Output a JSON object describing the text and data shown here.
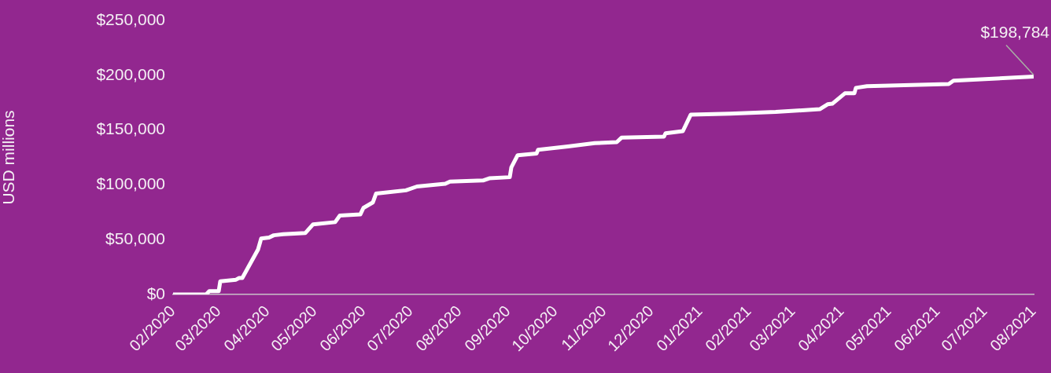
{
  "chart_data": {
    "type": "line",
    "ylabel": "USD millions",
    "x": [
      "2020-02-01",
      "2020-02-22",
      "2020-02-24",
      "2020-03-01",
      "2020-03-02",
      "2020-03-12",
      "2020-03-14",
      "2020-03-16",
      "2020-03-26",
      "2020-03-28",
      "2020-04-02",
      "2020-04-05",
      "2020-04-11",
      "2020-04-25",
      "2020-04-30",
      "2020-05-14",
      "2020-05-17",
      "2020-05-30",
      "2020-06-01",
      "2020-06-07",
      "2020-06-09",
      "2020-06-28",
      "2020-07-05",
      "2020-07-23",
      "2020-07-26",
      "2020-08-16",
      "2020-08-20",
      "2020-09-02",
      "2020-09-03",
      "2020-09-07",
      "2020-09-19",
      "2020-09-20",
      "2020-10-09",
      "2020-10-26",
      "2020-11-09",
      "2020-11-12",
      "2020-12-09",
      "2020-12-10",
      "2020-12-21",
      "2020-12-26",
      "2021-01-20",
      "2021-02-18",
      "2021-03-18",
      "2021-03-23",
      "2021-03-26",
      "2021-04-03",
      "2021-04-09",
      "2021-04-10",
      "2021-04-17",
      "2021-06-08",
      "2021-06-11",
      "2021-08-01"
    ],
    "series": [
      {
        "color": "#ffffff",
        "values": [
          0,
          0,
          3000,
          3000,
          12000,
          13500,
          15000,
          15000,
          41000,
          51000,
          52000,
          54000,
          55000,
          56000,
          64000,
          66000,
          72000,
          73000,
          79000,
          84000,
          92000,
          95000,
          98500,
          101000,
          103000,
          104000,
          106000,
          107000,
          116000,
          127000,
          128500,
          132000,
          135000,
          138000,
          139000,
          143000,
          144000,
          147000,
          149000,
          164000,
          165000,
          166500,
          169000,
          173500,
          174000,
          183500,
          183500,
          188500,
          190000,
          192000,
          195000,
          198784
        ]
      }
    ],
    "xlim": [
      "2020-02-01",
      "2021-08-01"
    ],
    "xticks": [
      {
        "value": "2020-02-01",
        "label": "02/2020"
      },
      {
        "value": "2020-03-01",
        "label": "03/2020"
      },
      {
        "value": "2020-04-01",
        "label": "04/2020"
      },
      {
        "value": "2020-05-01",
        "label": "05/2020"
      },
      {
        "value": "2020-06-01",
        "label": "06/2020"
      },
      {
        "value": "2020-07-01",
        "label": "07/2020"
      },
      {
        "value": "2020-08-01",
        "label": "08/2020"
      },
      {
        "value": "2020-09-01",
        "label": "09/2020"
      },
      {
        "value": "2020-10-01",
        "label": "10/2020"
      },
      {
        "value": "2020-11-01",
        "label": "11/2020"
      },
      {
        "value": "2020-12-01",
        "label": "12/2020"
      },
      {
        "value": "2021-01-01",
        "label": "01/2021"
      },
      {
        "value": "2021-02-01",
        "label": "02/2021"
      },
      {
        "value": "2021-03-01",
        "label": "03/2021"
      },
      {
        "value": "2021-04-01",
        "label": "04/2021"
      },
      {
        "value": "2021-05-01",
        "label": "05/2021"
      },
      {
        "value": "2021-06-01",
        "label": "06/2021"
      },
      {
        "value": "2021-07-01",
        "label": "07/2021"
      },
      {
        "value": "2021-08-01",
        "label": "08/2021"
      }
    ],
    "ylim": [
      0,
      250000
    ],
    "yticks": [
      {
        "value": 0,
        "label": "$0"
      },
      {
        "value": 50000,
        "label": "$50,000"
      },
      {
        "value": 100000,
        "label": "$100,000"
      },
      {
        "value": 150000,
        "label": "$150,000"
      },
      {
        "value": 200000,
        "label": "$200,000"
      },
      {
        "value": 250000,
        "label": "$250,000"
      }
    ],
    "annotations": [
      {
        "text": "$198,784",
        "x": "2021-08-01",
        "y": 198784
      }
    ],
    "grid": false,
    "legend": false,
    "marker": "none",
    "line_style": "solid"
  }
}
